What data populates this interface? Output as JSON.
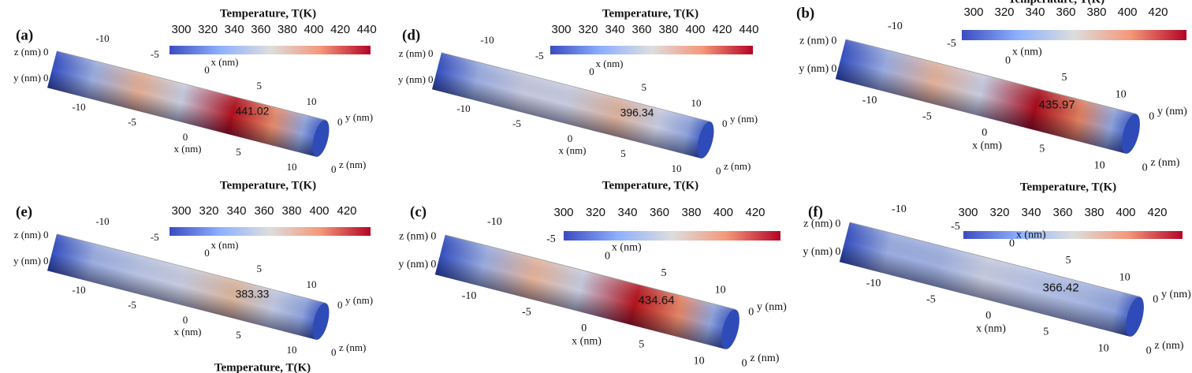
{
  "panels": [
    {
      "label": "(a)",
      "colorbar": {
        "title": "Temperature, T(K)",
        "ticks": [
          300,
          320,
          340,
          360,
          380,
          400,
          420,
          440
        ]
      },
      "max_label": 441.02,
      "axes": {
        "x_top": {
          "label": "x (nm)",
          "ticks": [
            -10,
            -5,
            0,
            5,
            10
          ]
        },
        "x_bottom": {
          "label": "x (nm)",
          "ticks": [
            -10,
            -5,
            0,
            5,
            10
          ]
        },
        "left": [
          {
            "axis": "z (nm)",
            "tick": 0
          },
          {
            "axis": "y (nm)",
            "tick": 0
          }
        ],
        "right": [
          {
            "axis": "y (nm)",
            "tick": 0
          },
          {
            "axis": "z (nm)",
            "tick": 0
          }
        ]
      }
    },
    {
      "label": "(d)",
      "colorbar": {
        "title": "Temperature, T(K)",
        "ticks": [
          300,
          320,
          340,
          360,
          380,
          400,
          420,
          440
        ]
      },
      "max_label": 396.34,
      "axes": {
        "x_top": {
          "label": "x (nm)",
          "ticks": [
            -10,
            -5,
            0,
            5,
            10
          ]
        },
        "x_bottom": {
          "label": "x (nm)",
          "ticks": [
            -10,
            -5,
            0,
            5,
            10
          ]
        },
        "left": [
          {
            "axis": "z (nm)",
            "tick": 0
          },
          {
            "axis": "y (nm)",
            "tick": 0
          }
        ],
        "right": [
          {
            "axis": "y (nm)",
            "tick": 0
          },
          {
            "axis": "z (nm)",
            "tick": 0
          }
        ]
      }
    },
    {
      "label": "(b)",
      "colorbar": {
        "title": "Temperature, T(K)",
        "ticks": [
          300,
          320,
          340,
          360,
          380,
          400,
          420
        ]
      },
      "max_label": 435.97,
      "axes": {
        "x_top": {
          "label": "x (nm)",
          "ticks": [
            -10,
            -5,
            0,
            5,
            10
          ]
        },
        "x_bottom": {
          "label": "x (nm)",
          "ticks": [
            -10,
            -5,
            0,
            5,
            10
          ]
        },
        "left": [
          {
            "axis": "z (nm)",
            "tick": 0
          },
          {
            "axis": "y (nm)",
            "tick": 0
          }
        ],
        "right": [
          {
            "axis": "y (nm)",
            "tick": 0
          },
          {
            "axis": "z (nm)",
            "tick": 0
          }
        ]
      }
    },
    {
      "label": "(e)",
      "colorbar": {
        "title": "Temperature, T(K)",
        "ticks": [
          300,
          320,
          340,
          360,
          380,
          400,
          420
        ]
      },
      "max_label": 383.33,
      "axes": {
        "x_top": {
          "label": "x (nm)",
          "ticks": [
            -10,
            -5,
            0,
            5,
            10
          ]
        },
        "x_bottom": {
          "label": "x (nm)",
          "ticks": [
            -10,
            -5,
            0,
            5,
            10
          ]
        },
        "left": [
          {
            "axis": "z (nm)",
            "tick": 0
          },
          {
            "axis": "y (nm)",
            "tick": 0
          }
        ],
        "right": [
          {
            "axis": "y (nm)",
            "tick": 0
          },
          {
            "axis": "z (nm)",
            "tick": 0
          }
        ]
      }
    },
    {
      "label": "(c)",
      "colorbar": {
        "title": "Temperature, T(K)",
        "ticks": [
          300,
          320,
          340,
          360,
          380,
          400,
          420
        ]
      },
      "max_label": 434.64,
      "axes": {
        "x_top": {
          "label": "x (nm)",
          "ticks": [
            -10,
            -5,
            0,
            5,
            10
          ]
        },
        "x_bottom": {
          "label": "x (nm)",
          "ticks": [
            -10,
            -5,
            0,
            5,
            10
          ]
        },
        "left": [
          {
            "axis": "z (nm)",
            "tick": 0
          },
          {
            "axis": "y (nm)",
            "tick": 0
          }
        ],
        "right": [
          {
            "axis": "y (nm)",
            "tick": 0
          },
          {
            "axis": "z (nm)",
            "tick": 0
          }
        ]
      }
    },
    {
      "label": "(f)",
      "colorbar": {
        "title": "Temperature, T(K)",
        "ticks": [
          300,
          320,
          340,
          360,
          380,
          400,
          420
        ]
      },
      "max_label": 366.42,
      "axes": {
        "x_top": {
          "label": "x (nm)",
          "ticks": [
            -10,
            -5,
            0,
            5,
            10
          ]
        },
        "x_bottom": {
          "label": "x (nm)",
          "ticks": [
            -10,
            -5,
            0,
            5,
            10
          ]
        },
        "left": [
          {
            "axis": "z (nm)",
            "tick": 0
          },
          {
            "axis": "y (nm)",
            "tick": 0
          }
        ],
        "right": [
          {
            "axis": "y (nm)",
            "tick": 0
          },
          {
            "axis": "z (nm)",
            "tick": 0
          }
        ]
      }
    }
  ],
  "extra_text": "Temperature, T(K)"
}
